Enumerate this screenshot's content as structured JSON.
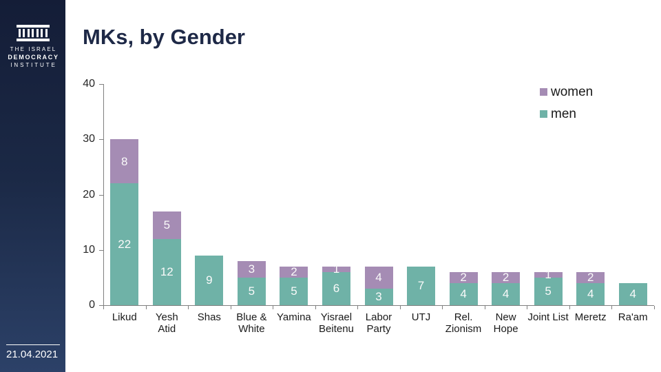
{
  "sidebar": {
    "logo_lines": [
      "THE ISRAEL",
      "DEMOCRACY",
      "INSTITUTE"
    ],
    "date": "21.04.2021"
  },
  "header": {
    "title": "MKs, by Gender"
  },
  "colors": {
    "men": "#6FB2A7",
    "women": "#A58CB4",
    "axis": "#7F7F7F",
    "title_text": "#1E2947",
    "sidebar_top": "#141D37",
    "sidebar_bottom": "#2C4168",
    "bar_value_text": "#FAFAFA"
  },
  "chart_data": {
    "type": "bar",
    "stacked": true,
    "title": "MKs, by Gender",
    "xlabel": "",
    "ylabel": "",
    "ylim": [
      0,
      40
    ],
    "yticks": [
      0,
      10,
      20,
      30,
      40
    ],
    "grid": false,
    "legend_position": "top-right",
    "value_labels": true,
    "categories": [
      "Likud",
      "Yesh Atid",
      "Shas",
      "Blue & White",
      "Yamina",
      "Yisrael Beitenu",
      "Labor Party",
      "UTJ",
      "Rel. Zionism",
      "New Hope",
      "Joint List",
      "Meretz",
      "Ra'am"
    ],
    "tick_label_lines": [
      [
        "Likud"
      ],
      [
        "Yesh",
        "Atid"
      ],
      [
        "Shas"
      ],
      [
        "Blue &",
        "White"
      ],
      [
        "Yamina"
      ],
      [
        "Yisrael",
        "Beitenu"
      ],
      [
        "Labor",
        "Party"
      ],
      [
        "UTJ"
      ],
      [
        "Rel.",
        "Zionism"
      ],
      [
        "New",
        "Hope"
      ],
      [
        "Joint List"
      ],
      [
        "Meretz"
      ],
      [
        "Ra'am"
      ]
    ],
    "series": [
      {
        "name": "men",
        "color": "#6FB2A7",
        "values": [
          22,
          12,
          9,
          5,
          5,
          6,
          3,
          7,
          4,
          4,
          5,
          4,
          4
        ]
      },
      {
        "name": "women",
        "color": "#A58CB4",
        "values": [
          8,
          5,
          0,
          3,
          2,
          1,
          4,
          0,
          2,
          2,
          1,
          2,
          0
        ]
      }
    ],
    "legend": [
      {
        "label": "women",
        "color": "#A58CB4"
      },
      {
        "label": "men",
        "color": "#6FB2A7"
      }
    ]
  }
}
